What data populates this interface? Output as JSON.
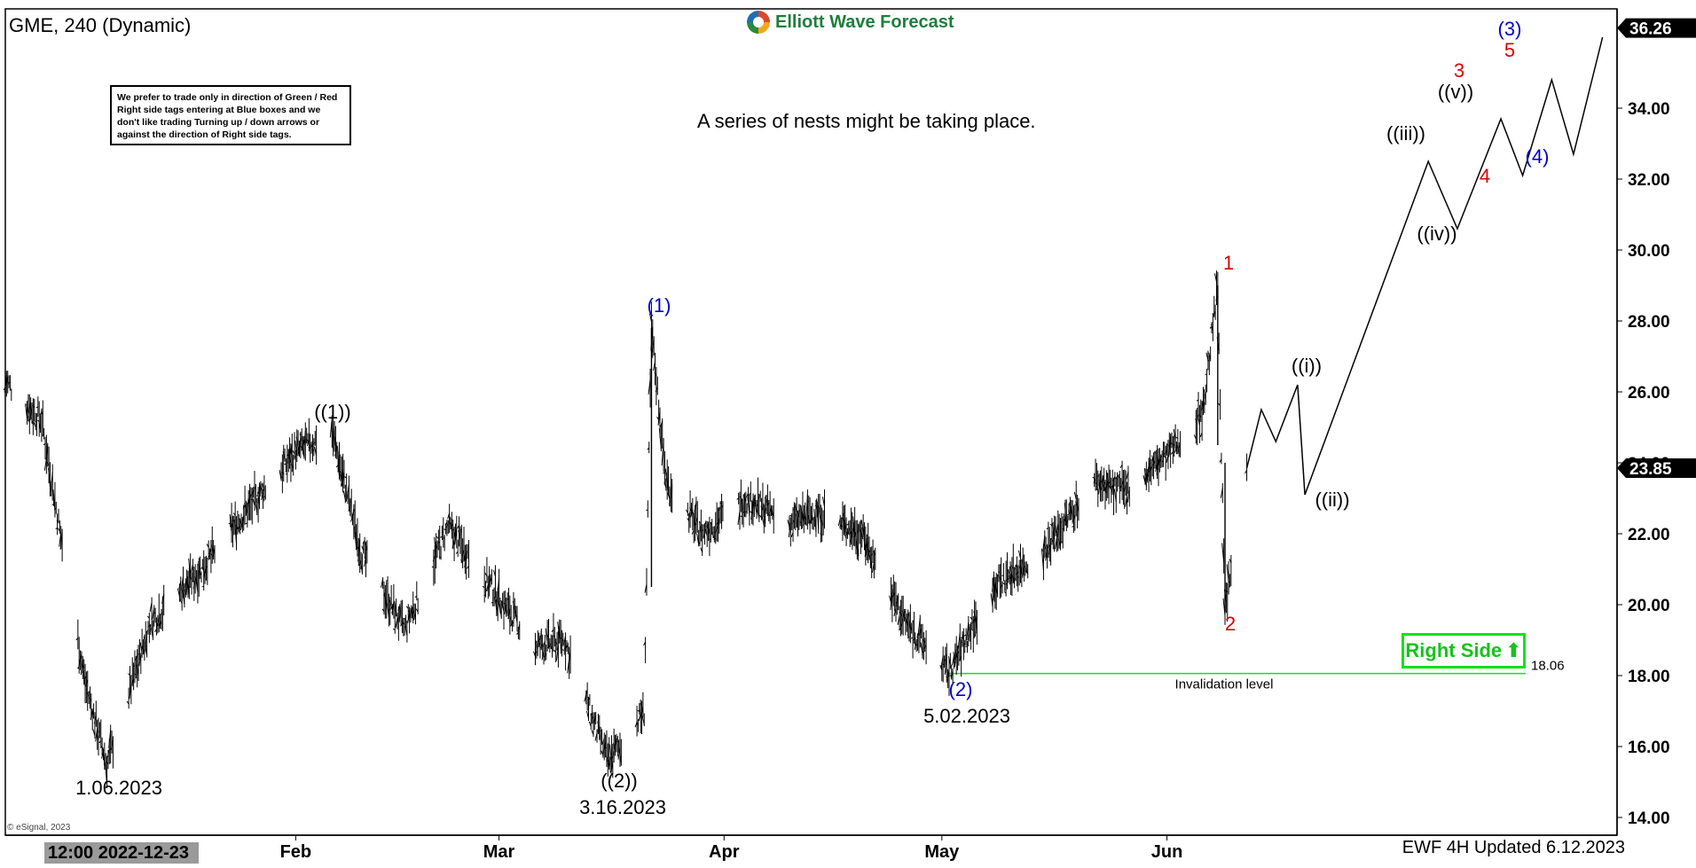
{
  "header": {
    "title": "GME, 240 (Dynamic)",
    "logo_text": "Elliott Wave Forecast",
    "logo_icon": "ewf-logo-icon"
  },
  "disclaimer": "We prefer to trade only in direction of Green / Red Right side tags entering at Blue boxes and we don't like trading Turning up / down arrows or against the direction of Right side tags.",
  "note": "A series of nests might be taking place.",
  "right_side_label": "Right Side",
  "right_side_icon": "up-arrow-icon",
  "footer": "EWF 4H Updated 6.12.2023",
  "copyright": "© eSignal, 2023",
  "x_axis": {
    "start_label": "12:00 2022-12-23"
  },
  "colors": {
    "green": "#15e01a",
    "blue": "#0000cc",
    "red": "#dd0000",
    "black": "#000000"
  },
  "chart_data": {
    "type": "line",
    "subtype": "ohlc-bar-with-elliott-wave-projection",
    "title": "GME, 240 (Dynamic)",
    "ylim": [
      13.5,
      36.8
    ],
    "y_ticks": [
      14,
      16,
      18,
      20,
      22,
      24,
      26,
      28,
      30,
      32,
      34
    ],
    "y_tick_labels": [
      "14.00",
      "16.00",
      "18.00",
      "20.00",
      "22.00",
      "24.00",
      "26.00",
      "28.00",
      "30.00",
      "32.00",
      "34.00"
    ],
    "y_markers": [
      {
        "label": "36.26",
        "value": 36.26
      },
      {
        "label": "23.85",
        "value": 23.85
      }
    ],
    "x_ticks": [
      "Feb",
      "Mar",
      "Apr",
      "May",
      "Jun"
    ],
    "price_path": [
      [
        "2022-12-23",
        26.3
      ],
      [
        "2022-12-28",
        25.2
      ],
      [
        "2023-01-03",
        17.8
      ],
      [
        "2023-01-06",
        15.5
      ],
      [
        "2023-01-12",
        19.5
      ],
      [
        "2023-01-19",
        21.0
      ],
      [
        "2023-01-25",
        22.6
      ],
      [
        "2023-02-01",
        24.3
      ],
      [
        "2023-02-06",
        24.9
      ],
      [
        "2023-02-10",
        21.5
      ],
      [
        "2023-02-16",
        19.3
      ],
      [
        "2023-02-22",
        22.2
      ],
      [
        "2023-02-28",
        20.5
      ],
      [
        "2023-03-06",
        18.8
      ],
      [
        "2023-03-10",
        19.0
      ],
      [
        "2023-03-16",
        15.6
      ],
      [
        "2023-03-21",
        17.0
      ],
      [
        "2023-03-22",
        27.8
      ],
      [
        "2023-03-24",
        23.5
      ],
      [
        "2023-03-29",
        22.0
      ],
      [
        "2023-04-04",
        23.0
      ],
      [
        "2023-04-10",
        22.3
      ],
      [
        "2023-04-14",
        22.6
      ],
      [
        "2023-04-20",
        22.0
      ],
      [
        "2023-04-26",
        19.5
      ],
      [
        "2023-05-02",
        18.06
      ],
      [
        "2023-05-08",
        20.5
      ],
      [
        "2023-05-15",
        21.5
      ],
      [
        "2023-05-22",
        23.5
      ],
      [
        "2023-05-26",
        23.2
      ],
      [
        "2023-06-01",
        24.2
      ],
      [
        "2023-06-06",
        25.5
      ],
      [
        "2023-06-08",
        29.0
      ],
      [
        "2023-06-09",
        19.8
      ],
      [
        "2023-06-12",
        23.85
      ]
    ],
    "projection_path": [
      [
        "2023-06-12",
        23.85
      ],
      [
        "2023-06-14",
        25.5
      ],
      [
        "2023-06-16",
        24.6
      ],
      [
        "2023-06-19",
        26.2
      ],
      [
        "2023-06-20",
        23.1
      ],
      [
        "2023-07-07",
        32.5
      ],
      [
        "2023-07-11",
        30.6
      ],
      [
        "2023-07-17",
        33.7
      ],
      [
        "2023-07-20",
        32.1
      ],
      [
        "2023-07-24",
        34.8
      ],
      [
        "2023-07-27",
        32.7
      ],
      [
        "2023-07-31",
        36.0
      ]
    ],
    "wave_labels": [
      {
        "text": "1.06.2023",
        "color": "black"
      },
      {
        "text": "((1))",
        "color": "black"
      },
      {
        "text": "((2))",
        "color": "black"
      },
      {
        "text": "3.16.2023",
        "color": "black"
      },
      {
        "text": "(1)",
        "color": "blue"
      },
      {
        "text": "(2)",
        "color": "blue"
      },
      {
        "text": "5.02.2023",
        "color": "black"
      },
      {
        "text": "1",
        "color": "red"
      },
      {
        "text": "2",
        "color": "red"
      },
      {
        "text": "((i))",
        "color": "black"
      },
      {
        "text": "((ii))",
        "color": "black"
      },
      {
        "text": "((iii))",
        "color": "black"
      },
      {
        "text": "((iv))",
        "color": "black"
      },
      {
        "text": "((v))",
        "color": "black"
      },
      {
        "text": "3",
        "color": "red"
      },
      {
        "text": "4",
        "color": "red"
      },
      {
        "text": "5",
        "color": "red"
      },
      {
        "text": "(3)",
        "color": "blue"
      },
      {
        "text": "(4)",
        "color": "blue"
      }
    ],
    "invalidation": {
      "value": 18.06,
      "label": "Invalidation level",
      "price_label": "18.06",
      "color": "#15e01a"
    }
  }
}
